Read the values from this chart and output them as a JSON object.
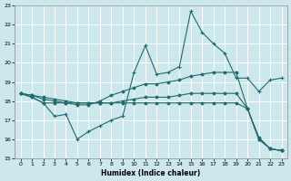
{
  "xlabel": "Humidex (Indice chaleur)",
  "xlim": [
    -0.5,
    23.5
  ],
  "ylim": [
    15,
    23
  ],
  "yticks": [
    15,
    16,
    17,
    18,
    19,
    20,
    21,
    22,
    23
  ],
  "xticks": [
    0,
    1,
    2,
    3,
    4,
    5,
    6,
    7,
    8,
    9,
    10,
    11,
    12,
    13,
    14,
    15,
    16,
    17,
    18,
    19,
    20,
    21,
    22,
    23
  ],
  "bg_color": "#cde8ec",
  "grid_color": "#ffffff",
  "line_color": "#1e6b6b",
  "line1_x": [
    0,
    1,
    2,
    3,
    4,
    5,
    6,
    7,
    8,
    9,
    10,
    11,
    12,
    13,
    14,
    15,
    16,
    17,
    18,
    19,
    20,
    21,
    22,
    23
  ],
  "line1_y": [
    18.4,
    18.2,
    17.9,
    17.2,
    17.3,
    16.0,
    16.4,
    16.7,
    17.0,
    17.2,
    19.5,
    20.9,
    19.4,
    19.5,
    19.8,
    22.7,
    21.6,
    21.0,
    20.5,
    19.2,
    19.2,
    18.5,
    19.1,
    19.2
  ],
  "line2_x": [
    0,
    1,
    2,
    3,
    4,
    5,
    6,
    7,
    8,
    9,
    10,
    11,
    12,
    13,
    14,
    15,
    16,
    17,
    18,
    19,
    20,
    21,
    22,
    23
  ],
  "line2_y": [
    18.4,
    18.3,
    18.1,
    18.0,
    17.9,
    17.8,
    17.8,
    18.0,
    18.3,
    18.5,
    18.7,
    18.9,
    18.9,
    19.0,
    19.1,
    19.3,
    19.4,
    19.5,
    19.5,
    19.5,
    17.6,
    16.1,
    15.5,
    15.4
  ],
  "line3_x": [
    0,
    1,
    2,
    3,
    4,
    5,
    6,
    7,
    8,
    9,
    10,
    11,
    12,
    13,
    14,
    15,
    16,
    17,
    18,
    19,
    20,
    21,
    22,
    23
  ],
  "line3_y": [
    18.4,
    18.2,
    17.9,
    17.9,
    17.9,
    17.9,
    17.9,
    17.9,
    17.9,
    17.9,
    17.9,
    17.9,
    17.9,
    17.9,
    17.9,
    17.9,
    17.9,
    17.9,
    17.9,
    17.9,
    17.6,
    16.0,
    15.5,
    15.4
  ],
  "line4_x": [
    0,
    1,
    2,
    3,
    4,
    5,
    6,
    7,
    8,
    9,
    10,
    11,
    12,
    13,
    14,
    15,
    16,
    17,
    18,
    19,
    20,
    21,
    22,
    23
  ],
  "line4_y": [
    18.4,
    18.3,
    18.2,
    18.1,
    18.0,
    17.9,
    17.9,
    17.9,
    17.9,
    18.0,
    18.1,
    18.2,
    18.2,
    18.2,
    18.3,
    18.4,
    18.4,
    18.4,
    18.4,
    18.4,
    17.6,
    16.0,
    15.5,
    15.4
  ]
}
